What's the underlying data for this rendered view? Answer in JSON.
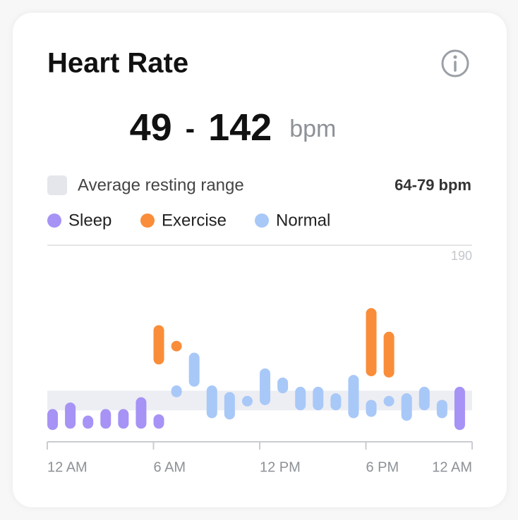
{
  "header": {
    "title": "Heart Rate",
    "range_min": 49,
    "separator": "-",
    "range_max": 142,
    "unit": "bpm"
  },
  "chart_data": {
    "type": "range-bar",
    "resting_label": "Average resting range",
    "resting_range": [
      64,
      79
    ],
    "resting_range_label": "64-79 bpm",
    "band_color": "#eceef3",
    "series": [
      {
        "name": "Sleep",
        "color": "#a793f5",
        "x": [
          0.3,
          1.3,
          2.3,
          3.3,
          4.3,
          5.3,
          6.3,
          23.3
        ],
        "low": [
          49,
          50,
          50,
          50,
          50,
          50,
          50,
          49
        ],
        "high": [
          65,
          70,
          60,
          65,
          65,
          74,
          61,
          82
        ]
      },
      {
        "name": "Exercise",
        "color": "#fa8d3a",
        "x": [
          6.3,
          7.3,
          18.3,
          19.3
        ],
        "low": [
          99,
          113,
          90,
          89
        ],
        "high": [
          129,
          113,
          142,
          124
        ]
      },
      {
        "name": "Normal",
        "color": "#a8c8f8",
        "x": [
          7.3,
          8.3,
          9.3,
          10.3,
          11.3,
          12.3,
          13.3,
          14.3,
          15.3,
          16.3,
          17.3,
          18.3,
          19.3,
          20.3,
          21.3,
          22.3
        ],
        "low": [
          74,
          82,
          58,
          57,
          67,
          68,
          77,
          64,
          64,
          64,
          58,
          59,
          71,
          56,
          64,
          58
        ],
        "high": [
          83,
          108,
          83,
          78,
          75,
          96,
          89,
          82,
          82,
          77,
          91,
          72,
          71,
          77,
          82,
          72
        ]
      }
    ],
    "xlim": [
      0,
      24
    ],
    "xticks": [
      {
        "value": 0,
        "label": "12 AM"
      },
      {
        "value": 6,
        "label": "6 AM"
      },
      {
        "value": 12,
        "label": "12 PM"
      },
      {
        "value": 18,
        "label": "6 PM"
      },
      {
        "value": 24,
        "label": "12 AM"
      }
    ],
    "ylim": [
      40,
      190
    ],
    "yticks": [
      190
    ]
  }
}
